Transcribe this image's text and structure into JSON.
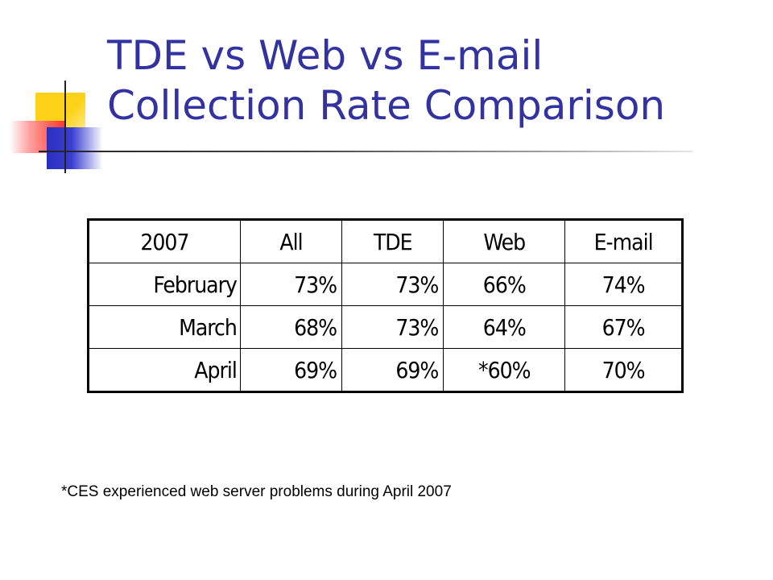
{
  "title": {
    "line1": "TDE vs Web vs E-mail",
    "line2": "Collection Rate Comparison"
  },
  "table": {
    "header": [
      "2007",
      "All",
      "TDE",
      "Web",
      "E-mail"
    ],
    "rows": [
      [
        "February",
        "73%",
        "73%",
        "66%",
        "74%"
      ],
      [
        "March",
        "68%",
        "73%",
        "64%",
        "67%"
      ],
      [
        "April",
        "69%",
        "69%",
        "*60%",
        "70%"
      ]
    ]
  },
  "footnote": "*CES experienced web server problems during April 2007",
  "colors": {
    "title": "#3232a0",
    "deco_yellow": "#ffd21a",
    "deco_red": "#ff2a2a",
    "deco_blue": "#2b2fbf"
  }
}
